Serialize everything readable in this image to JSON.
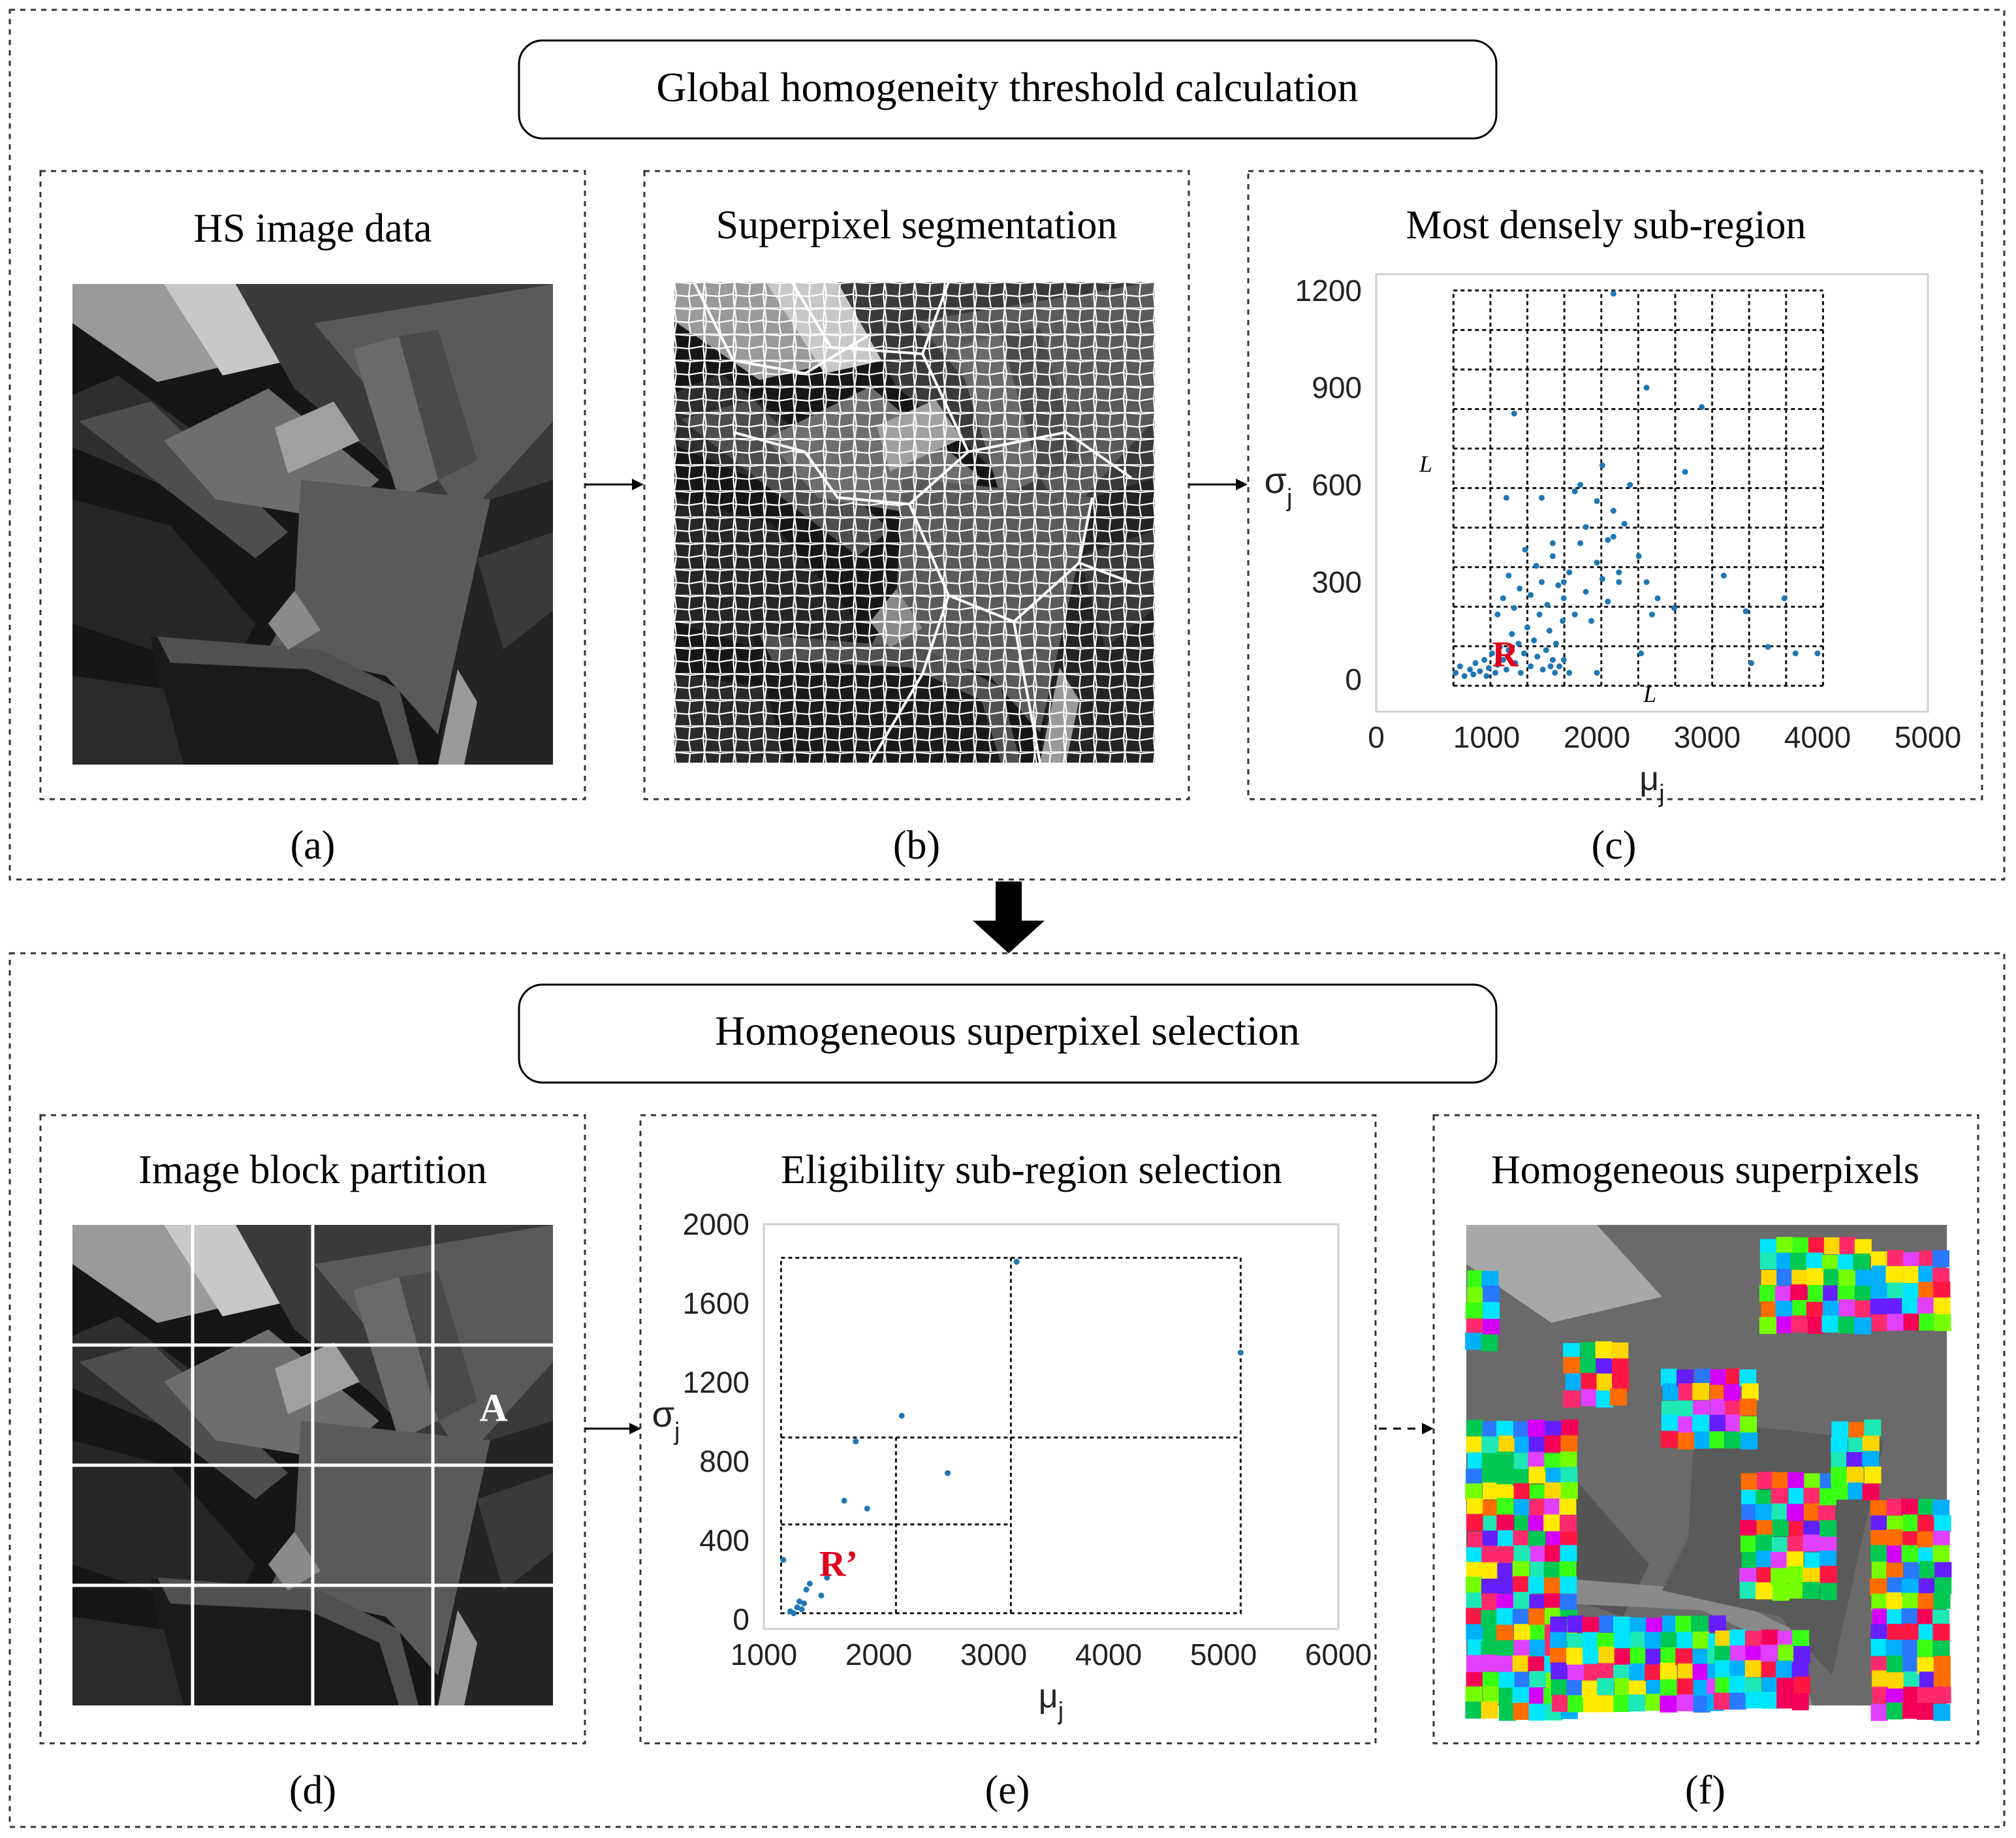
{
  "stage1": {
    "title": "Global homogeneity threshold calculation"
  },
  "stage2": {
    "title": "Homogeneous superpixel selection"
  },
  "panels": {
    "a": {
      "title": "HS image data",
      "caption": "(a)"
    },
    "b": {
      "title": "Superpixel segmentation",
      "caption": "(b)"
    },
    "c": {
      "title": "Most densely sub-region",
      "caption": "(c)"
    },
    "d": {
      "title": "Image block partition",
      "caption": "(d)",
      "block_label": "A"
    },
    "e": {
      "title": "Eligibility sub-region selection",
      "caption": "(e)"
    },
    "f": {
      "title": "Homogeneous superpixels",
      "caption": "(f)"
    }
  },
  "colors": {
    "border": "#333333",
    "scatter_point": "#1f77b4",
    "highlight_label": "#e0001b"
  },
  "chart_data": [
    {
      "id": "c",
      "type": "scatter",
      "title": "Most densely sub-region",
      "xlabel": "μ",
      "xlabel_sub": "j",
      "ylabel": "σ",
      "ylabel_sub": "j",
      "xlim": [
        0,
        5000
      ],
      "ylim": [
        -100,
        1250
      ],
      "xticks": [
        0,
        1000,
        2000,
        3000,
        4000,
        5000
      ],
      "yticks": [
        0,
        300,
        600,
        900,
        1200
      ],
      "grid_cells": {
        "x_start": 700,
        "x_end": 4050,
        "y_start": -20,
        "y_end": 1200,
        "nx": 10,
        "ny": 10
      },
      "annotations": [
        {
          "text": "L",
          "x": 450,
          "y": 640,
          "style": "italic"
        },
        {
          "text": "L",
          "x": 2480,
          "y": -70,
          "style": "italic"
        },
        {
          "text": "R",
          "x": 1170,
          "y": 40,
          "style": "bold-red"
        }
      ],
      "points": [
        [
          720,
          20
        ],
        [
          760,
          40
        ],
        [
          800,
          10
        ],
        [
          850,
          30
        ],
        [
          880,
          15
        ],
        [
          900,
          50
        ],
        [
          940,
          25
        ],
        [
          980,
          60
        ],
        [
          1000,
          10
        ],
        [
          1020,
          35
        ],
        [
          1050,
          80
        ],
        [
          1080,
          20
        ],
        [
          1100,
          45
        ],
        [
          1120,
          100
        ],
        [
          1150,
          60
        ],
        [
          1180,
          30
        ],
        [
          1200,
          90
        ],
        [
          1230,
          140
        ],
        [
          1260,
          50
        ],
        [
          1290,
          110
        ],
        [
          1310,
          20
        ],
        [
          1340,
          80
        ],
        [
          1370,
          160
        ],
        [
          1400,
          40
        ],
        [
          1430,
          120
        ],
        [
          1460,
          70
        ],
        [
          1480,
          200
        ],
        [
          1510,
          30
        ],
        [
          1540,
          90
        ],
        [
          1570,
          150
        ],
        [
          1600,
          60
        ],
        [
          1630,
          110
        ],
        [
          1660,
          40
        ],
        [
          1690,
          180
        ],
        [
          1100,
          200
        ],
        [
          1150,
          250
        ],
        [
          1200,
          320
        ],
        [
          1250,
          220
        ],
        [
          1300,
          280
        ],
        [
          1350,
          400
        ],
        [
          1400,
          260
        ],
        [
          1450,
          350
        ],
        [
          1500,
          300
        ],
        [
          1550,
          230
        ],
        [
          1600,
          380
        ],
        [
          1650,
          290
        ],
        [
          1700,
          250
        ],
        [
          1750,
          330
        ],
        [
          1800,
          200
        ],
        [
          1850,
          420
        ],
        [
          1900,
          270
        ],
        [
          1950,
          180
        ],
        [
          2000,
          360
        ],
        [
          2050,
          310
        ],
        [
          2100,
          240
        ],
        [
          2150,
          440
        ],
        [
          2200,
          300
        ],
        [
          1180,
          560
        ],
        [
          1250,
          820
        ],
        [
          1500,
          560
        ],
        [
          1600,
          420
        ],
        [
          1700,
          300
        ],
        [
          1800,
          580
        ],
        [
          1850,
          600
        ],
        [
          1900,
          470
        ],
        [
          2000,
          550
        ],
        [
          2050,
          660
        ],
        [
          2100,
          430
        ],
        [
          2150,
          520
        ],
        [
          2200,
          330
        ],
        [
          2250,
          480
        ],
        [
          2300,
          600
        ],
        [
          2380,
          380
        ],
        [
          2450,
          300
        ],
        [
          2500,
          200
        ],
        [
          2550,
          250
        ],
        [
          2400,
          80
        ],
        [
          2700,
          220
        ],
        [
          2800,
          640
        ],
        [
          2950,
          840
        ],
        [
          3150,
          320
        ],
        [
          3350,
          210
        ],
        [
          3700,
          250
        ],
        [
          3550,
          100
        ],
        [
          3800,
          80
        ],
        [
          3400,
          50
        ],
        [
          4000,
          80
        ],
        [
          2450,
          900
        ],
        [
          2150,
          1190
        ],
        [
          1580,
          40
        ],
        [
          1620,
          20
        ],
        [
          1700,
          60
        ],
        [
          1750,
          20
        ],
        [
          2000,
          20
        ]
      ]
    },
    {
      "id": "e",
      "type": "scatter",
      "title": "Eligibility sub-region selection",
      "xlabel": "μ",
      "xlabel_sub": "j",
      "ylabel": "σ",
      "ylabel_sub": "j",
      "xlim": [
        1000,
        6000
      ],
      "ylim": [
        -50,
        2000
      ],
      "xticks": [
        1000,
        2000,
        3000,
        4000,
        5000,
        6000
      ],
      "yticks": [
        0,
        400,
        800,
        1200,
        1600,
        2000
      ],
      "grid_lines": {
        "outer": [
          1150,
          5150,
          30,
          1830
        ],
        "v_full": [
          3150
        ],
        "h_full": [
          920
        ],
        "sub_h": [
          [
            1150,
            3150,
            480
          ]
        ],
        "sub_v": [
          [
            2150,
            30,
            920
          ]
        ]
      },
      "annotations": [
        {
          "text": "R’",
          "x": 1650,
          "y": 220,
          "style": "bold-red"
        }
      ],
      "points": [
        [
          1170,
          300
        ],
        [
          1230,
          40
        ],
        [
          1260,
          30
        ],
        [
          1290,
          60
        ],
        [
          1310,
          90
        ],
        [
          1330,
          50
        ],
        [
          1350,
          80
        ],
        [
          1370,
          150
        ],
        [
          1400,
          180
        ],
        [
          1500,
          120
        ],
        [
          1550,
          210
        ],
        [
          1700,
          600
        ],
        [
          1800,
          900
        ],
        [
          1900,
          560
        ],
        [
          2200,
          1030
        ],
        [
          2600,
          740
        ],
        [
          3200,
          1810
        ],
        [
          5150,
          1350
        ]
      ]
    }
  ]
}
